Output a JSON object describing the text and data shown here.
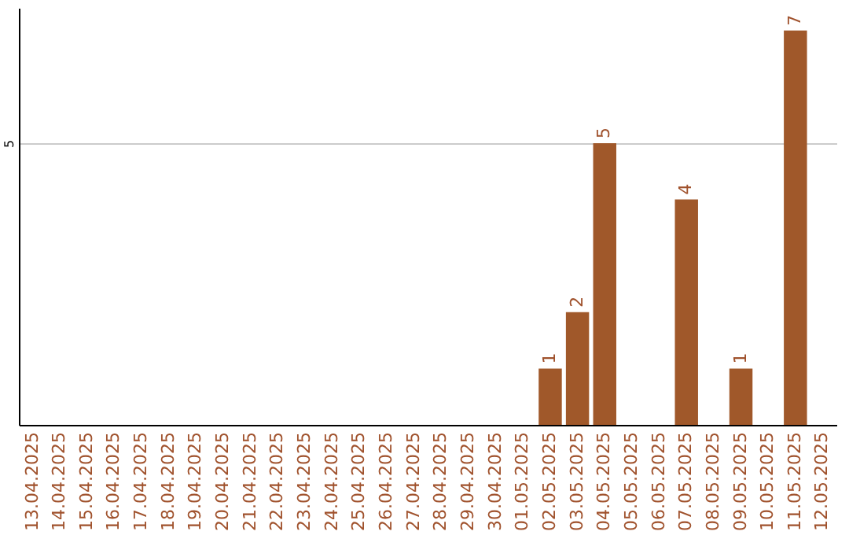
{
  "chart_data": {
    "type": "bar",
    "categories": [
      "13.04.2025",
      "14.04.2025",
      "15.04.2025",
      "16.04.2025",
      "17.04.2025",
      "18.04.2025",
      "19.04.2025",
      "20.04.2025",
      "21.04.2025",
      "22.04.2025",
      "23.04.2025",
      "24.04.2025",
      "25.04.2025",
      "26.04.2025",
      "27.04.2025",
      "28.04.2025",
      "29.04.2025",
      "30.04.2025",
      "01.05.2025",
      "02.05.2025",
      "03.05.2025",
      "04.05.2025",
      "05.05.2025",
      "06.05.2025",
      "07.05.2025",
      "08.05.2025",
      "09.05.2025",
      "10.05.2025",
      "11.05.2025",
      "12.05.2025"
    ],
    "values": [
      null,
      null,
      null,
      null,
      null,
      null,
      null,
      null,
      null,
      null,
      null,
      null,
      null,
      null,
      null,
      null,
      null,
      null,
      null,
      1,
      2,
      5,
      null,
      null,
      4,
      null,
      1,
      null,
      7,
      null
    ],
    "value_labels": [
      null,
      null,
      null,
      null,
      null,
      null,
      null,
      null,
      null,
      null,
      null,
      null,
      null,
      null,
      null,
      null,
      null,
      null,
      null,
      "1",
      "2",
      "5",
      null,
      null,
      "4",
      null,
      "1",
      null,
      "7",
      null
    ],
    "color": "#a0582a",
    "ylim": [
      0,
      7.4
    ],
    "yticks": [
      5
    ],
    "grid": "y"
  }
}
